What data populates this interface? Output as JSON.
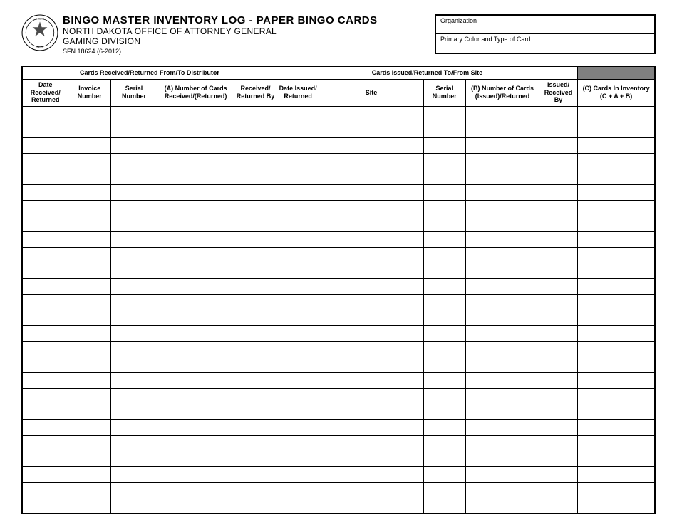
{
  "header": {
    "title": "BINGO MASTER INVENTORY LOG - PAPER BINGO CARDS",
    "subtitle1": "NORTH DAKOTA OFFICE OF ATTORNEY GENERAL",
    "subtitle2": "GAMING DIVISION",
    "form_number": "SFN 18624 (6-2012)",
    "seal_label": "state-seal-icon"
  },
  "fields": {
    "organization_label": "Organization",
    "organization_value": "",
    "color_type_label": "Primary Color and Type of Card",
    "color_type_value": ""
  },
  "table": {
    "section1_header": "Cards Received/Returned From/To Distributor",
    "section2_header": "Cards Issued/Returned To/From Site",
    "columns": {
      "date1": "Date Received/ Returned",
      "invoice": "Invoice Number",
      "serial1": "Serial Number",
      "cards_a": "(A)\nNumber of Cards Received/(Returned)",
      "recvby1": "Received/ Returned By",
      "date2": "Date Issued/ Returned",
      "site": "Site",
      "serial2": "Serial Number",
      "cards_b": "(B)\nNumber of Cards (Issued)/Returned",
      "recvby2": "Issued/ Received By",
      "col_c": "(C)\nCards In Inventory (C + A + B)"
    },
    "row_count": 26,
    "colors": {
      "border": "#000000",
      "shaded_cell": "#808080",
      "background": "#ffffff",
      "text": "#000000"
    }
  }
}
